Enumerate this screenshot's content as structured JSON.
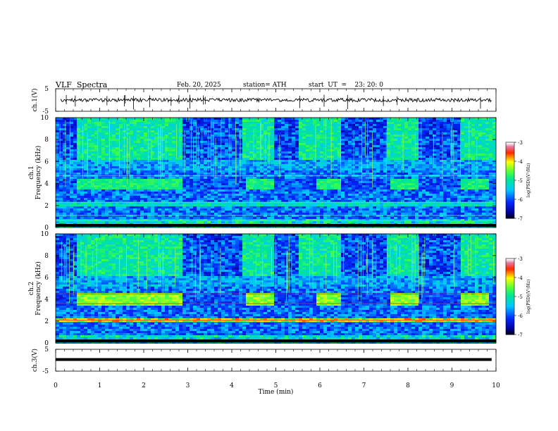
{
  "header": {
    "title": "VLF  Spectra",
    "date": "Feb. 20, 2025",
    "station": "station= ATH",
    "start": "start  UT  =    23: 20: 0"
  },
  "chart_data": [
    {
      "type": "line",
      "panel": "ch1-waveform",
      "ylabel": "ch.1(V)",
      "ylim": [
        -5,
        5
      ],
      "yticks": [
        "5",
        "-5"
      ],
      "xlim": [
        0,
        10
      ]
    },
    {
      "type": "heatmap",
      "panel": "ch1-spectrogram",
      "ylabel": "ch.1\nFrequency  (kHz)",
      "ylim": [
        0,
        10
      ],
      "yticks": [
        "0",
        "2",
        "4",
        "6",
        "8",
        "10"
      ],
      "xlim": [
        0,
        10
      ],
      "colorbar": {
        "label": "log(PSD)(V²/Hz)",
        "range": [
          -7,
          -3
        ],
        "ticks": [
          "-3",
          "-4",
          "-5",
          "-6",
          "-7"
        ]
      },
      "features": {
        "band_4kHz_segments_min": [
          [
            0.45,
            2.85
          ],
          [
            4.25,
            4.9
          ],
          [
            5.85,
            6.45
          ],
          [
            7.55,
            8.2
          ],
          [
            9.2,
            9.8
          ]
        ]
      }
    },
    {
      "type": "heatmap",
      "panel": "ch2-spectrogram",
      "ylabel": "ch.2\nFrequency  (kHz)",
      "ylim": [
        0,
        10
      ],
      "yticks": [
        "0",
        "2",
        "4",
        "6",
        "8",
        "10"
      ],
      "xlim": [
        0,
        10
      ],
      "colorbar": {
        "label": "log(PSD)(V²/Hz)",
        "range": [
          -7,
          -3
        ],
        "ticks": [
          "-3",
          "-4",
          "-5",
          "-6",
          "-7"
        ]
      }
    },
    {
      "type": "line",
      "panel": "ch3-waveform",
      "ylabel": "ch.3(V)",
      "ylim": [
        -5,
        5
      ],
      "yticks": [
        "5",
        "-5"
      ],
      "xlim": [
        0,
        10
      ],
      "xlabel": "Time  (min)",
      "xticks": [
        "0",
        "1",
        "2",
        "3",
        "4",
        "5",
        "6",
        "7",
        "8",
        "9",
        "10"
      ]
    }
  ]
}
